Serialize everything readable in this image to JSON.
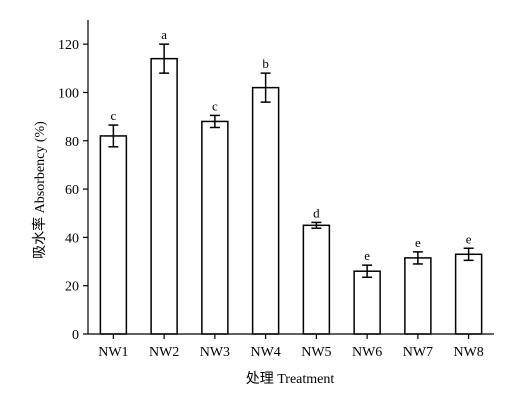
{
  "chart_data": {
    "type": "bar",
    "categories": [
      "NW1",
      "NW2",
      "NW3",
      "NW4",
      "NW5",
      "NW6",
      "NW7",
      "NW8"
    ],
    "values": [
      82,
      114,
      88,
      102,
      45,
      26,
      31.5,
      33
    ],
    "errors": [
      4.5,
      6,
      2.5,
      6,
      1.2,
      2.5,
      2.5,
      2.5
    ],
    "significance": [
      "c",
      "a",
      "c",
      "b",
      "d",
      "e",
      "e",
      "e"
    ],
    "xlabel": "处理 Treatment",
    "ylabel": "吸水率 Absorbency (%)",
    "ylim": [
      0,
      130
    ],
    "yticks": [
      0,
      20,
      40,
      60,
      80,
      100,
      120
    ],
    "grid": false,
    "bar_fill": "#ffffff",
    "bar_stroke": "#000000"
  }
}
